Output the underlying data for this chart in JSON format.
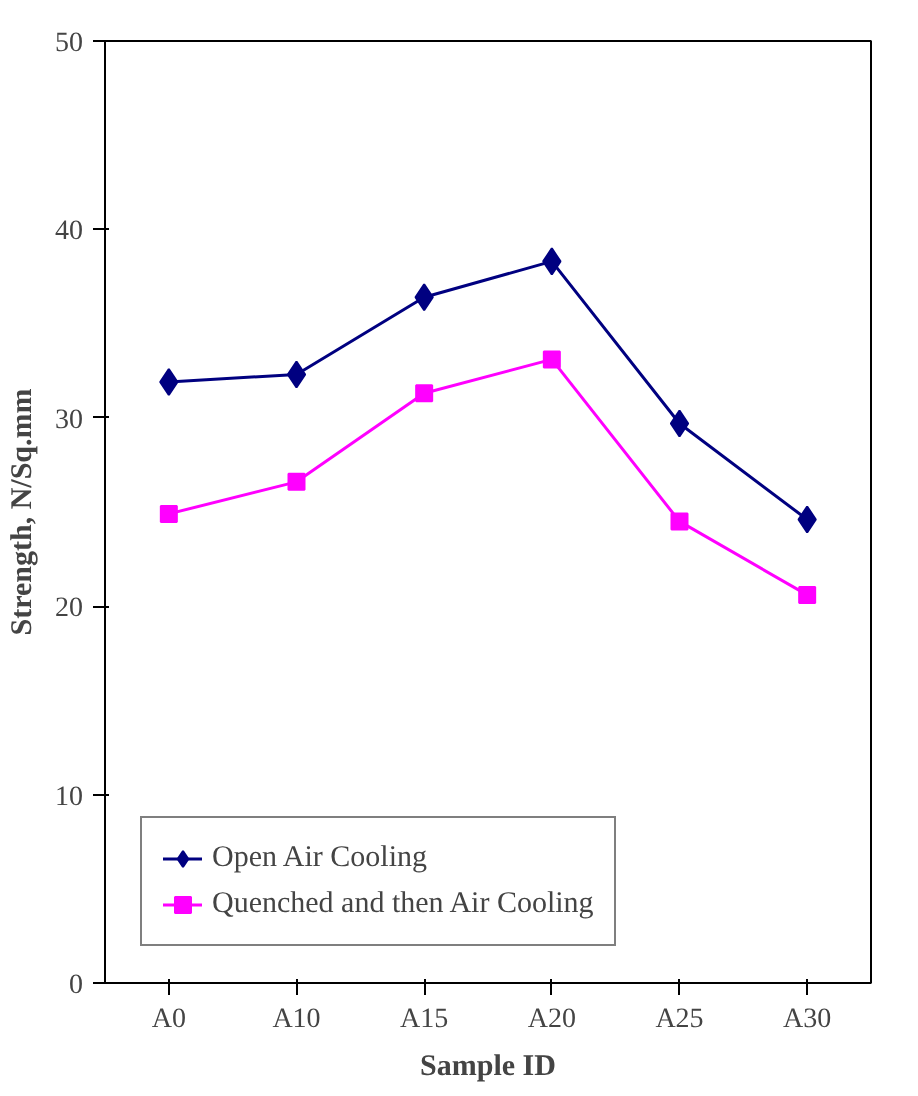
{
  "chart_data": {
    "type": "line",
    "xlabel": "Sample ID",
    "ylabel": "Strength, N/Sq.mm",
    "categories": [
      "A0",
      "A10",
      "A15",
      "A20",
      "A25",
      "A30"
    ],
    "series": [
      {
        "name": "Open Air Cooling",
        "color": "#000080",
        "marker": "diamond",
        "values": [
          31.9,
          32.3,
          36.4,
          38.3,
          29.7,
          24.6
        ]
      },
      {
        "name": "Quenched and then Air Cooling",
        "color": "#ff00ff",
        "marker": "square",
        "values": [
          24.9,
          26.6,
          31.3,
          33.1,
          24.5,
          20.6
        ]
      }
    ],
    "ylim": [
      0,
      50
    ],
    "yticks": [
      0,
      10,
      20,
      30,
      40,
      50
    ],
    "grid": false,
    "legend": "bottom left",
    "line_style": "solid"
  }
}
